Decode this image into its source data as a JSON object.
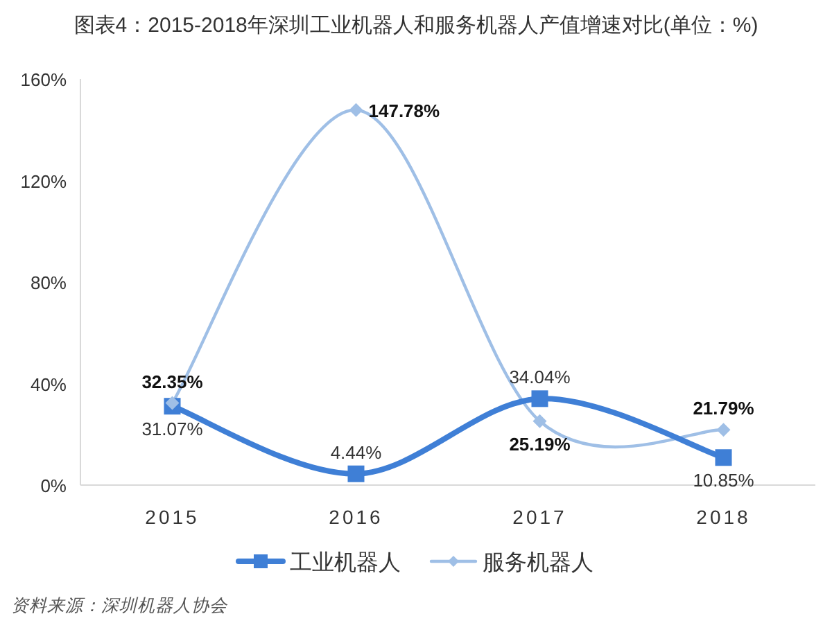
{
  "chart_data": {
    "type": "line",
    "title": "图表4：2015-2018年深圳工业机器人和服务机器人产值增速对比(单位：%)",
    "categories": [
      "2015",
      "2016",
      "2017",
      "2018"
    ],
    "series": [
      {
        "name": "工业机器人",
        "color": "#3f7fd6",
        "marker": "square",
        "values": [
          31.07,
          4.44,
          34.04,
          10.85
        ],
        "value_labels": [
          "31.07%",
          "4.44%",
          "34.04%",
          "10.85%"
        ]
      },
      {
        "name": "服务机器人",
        "color": "#9fbfe6",
        "marker": "diamond",
        "values": [
          32.35,
          147.78,
          25.19,
          21.79
        ],
        "value_labels": [
          "32.35%",
          "147.78%",
          "25.19%",
          "21.79%"
        ]
      }
    ],
    "ylim": [
      0,
      160
    ],
    "yticks": [
      {
        "value": 0,
        "label": "0%"
      },
      {
        "value": 40,
        "label": "40%"
      },
      {
        "value": 80,
        "label": "80%"
      },
      {
        "value": 120,
        "label": "120%"
      },
      {
        "value": 160,
        "label": "160%"
      }
    ],
    "legend": "bottom",
    "line_style": "solid",
    "annotations": [
      "资料来源：深圳机器人协会"
    ]
  }
}
